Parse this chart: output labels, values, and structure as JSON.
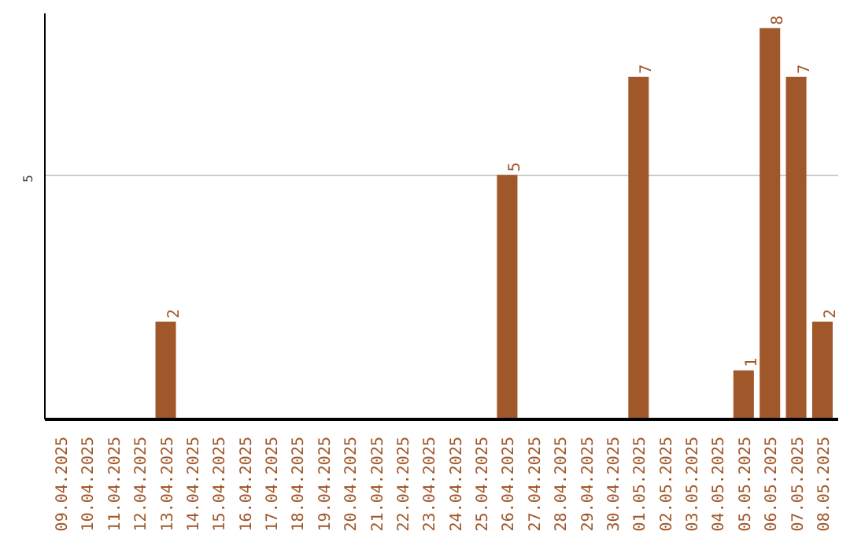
{
  "chart_data": {
    "type": "bar",
    "categories": [
      "09.04.2025",
      "10.04.2025",
      "11.04.2025",
      "12.04.2025",
      "13.04.2025",
      "14.04.2025",
      "15.04.2025",
      "16.04.2025",
      "17.04.2025",
      "18.04.2025",
      "19.04.2025",
      "20.04.2025",
      "21.04.2025",
      "22.04.2025",
      "23.04.2025",
      "24.04.2025",
      "25.04.2025",
      "26.04.2025",
      "27.04.2025",
      "28.04.2025",
      "29.04.2025",
      "30.04.2025",
      "01.05.2025",
      "02.05.2025",
      "03.05.2025",
      "04.05.2025",
      "05.05.2025",
      "06.05.2025",
      "07.05.2025",
      "08.05.2025"
    ],
    "values": [
      null,
      null,
      null,
      null,
      2,
      null,
      null,
      null,
      null,
      null,
      null,
      null,
      null,
      null,
      null,
      null,
      null,
      5,
      null,
      null,
      null,
      null,
      7,
      null,
      null,
      null,
      1,
      8,
      7,
      2
    ],
    "color": "#a0572a",
    "ylim": [
      0,
      8.3
    ],
    "yticks": [
      5
    ],
    "grid": "y",
    "data_labels": true
  }
}
